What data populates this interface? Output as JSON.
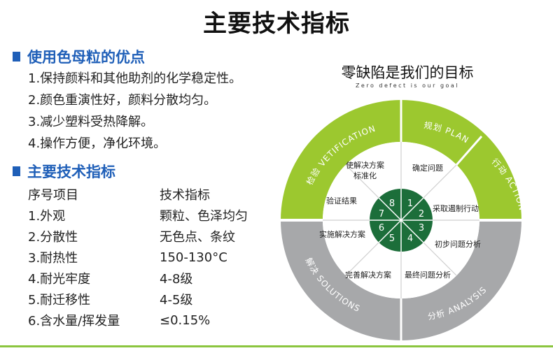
{
  "title": "主要技术指标",
  "advantages": {
    "heading": "使用色母粒的优点",
    "items": [
      "1.保持颜料和其他助剂的化学稳定性。",
      "2.颜色重演性好，颜料分散均匀。",
      "3.减少塑料受热降解。",
      "4.操作方便，净化环境。"
    ]
  },
  "specs": {
    "heading": "主要技术指标",
    "header": [
      "序号项目",
      "技术指标"
    ],
    "rows": [
      [
        "1.外观",
        "颗粒、色泽均匀"
      ],
      [
        "2.分散性",
        "无色点、条纹"
      ],
      [
        "3.耐热性",
        "150-130°C"
      ],
      [
        "4.耐光牢度",
        "4-8级"
      ],
      [
        "5.耐迁移性",
        "4-5级"
      ],
      [
        "6.含水量/挥发量",
        "≤0.15%"
      ]
    ]
  },
  "wheel": {
    "title": "零缺陷是我们的目标",
    "subtitle": "Zero defect is our goal",
    "outer": {
      "vetification": "检验 VETIFICATION",
      "plan": "规划 PLAN",
      "action": "行动 ACTION",
      "analysis": "分析 ANALYSIS",
      "solutions": "解决 SOLUTIONS"
    },
    "steps": [
      "确定问题",
      "采取遏制行动",
      "初步问题分析",
      "最终问题分析",
      "完善解决方案",
      "实施解决方案",
      "验证结果",
      "使解决方案标准化"
    ],
    "numbers": [
      "1",
      "2",
      "3",
      "4",
      "5",
      "6",
      "7",
      "8"
    ],
    "colors": {
      "green": "#9cc82f",
      "gray": "#a7a8aa",
      "hub": "#1c6e3a",
      "divider": "#cfcfcf"
    }
  }
}
